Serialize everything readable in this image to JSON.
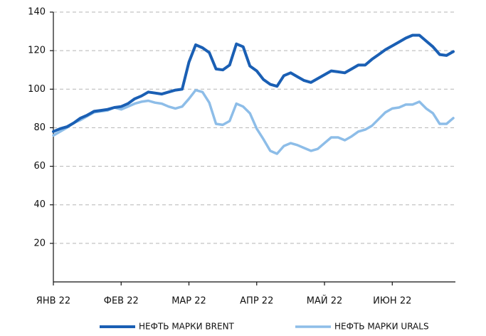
{
  "chart_data": {
    "type": "line",
    "categories": [
      "ЯНВ 22",
      null,
      null,
      null,
      null,
      null,
      null,
      null,
      null,
      null,
      "ФЕВ 22",
      null,
      null,
      null,
      null,
      null,
      null,
      null,
      null,
      null,
      "МАР 22",
      null,
      null,
      null,
      null,
      null,
      null,
      null,
      null,
      null,
      "АПР 22",
      null,
      null,
      null,
      null,
      null,
      null,
      null,
      null,
      null,
      "МАЙ 22",
      null,
      null,
      null,
      null,
      null,
      null,
      null,
      null,
      null,
      "ИЮН 22",
      null,
      null,
      null,
      null,
      null,
      null,
      null,
      null,
      null
    ],
    "series": [
      {
        "name": "НЕФТЬ МАРКИ BRENT",
        "color": "#1a5fb4",
        "values": [
          78,
          79.5,
          80.5,
          82.5,
          85,
          86.5,
          88.5,
          89,
          89.5,
          90.5,
          91,
          92.5,
          95,
          96.5,
          98.5,
          98,
          97.5,
          98.5,
          99.5,
          100,
          114,
          123,
          121.5,
          119,
          110.5,
          110,
          112.5,
          123.5,
          122,
          112,
          109.5,
          105,
          102.5,
          101.5,
          107,
          108.5,
          106.5,
          104.5,
          103.5,
          105.5,
          107.5,
          109.5,
          109,
          108.5,
          110.5,
          112.5,
          112.5,
          115.5,
          118,
          120.5,
          122.5,
          124.5,
          126.5,
          128,
          128,
          125,
          122,
          118,
          117.5,
          119.5
        ]
      },
      {
        "name": "НЕФТЬ МАРКИ URALS",
        "color": "#8dbde8",
        "values": [
          76,
          78,
          80,
          82.5,
          84,
          86,
          88,
          88.5,
          89,
          90.5,
          89.5,
          91,
          92.5,
          93.5,
          94,
          93,
          92.5,
          91,
          90,
          91,
          95,
          99.5,
          98.5,
          93,
          82,
          81.5,
          83.5,
          92.5,
          91,
          87.5,
          79.5,
          74,
          68,
          66.5,
          70.5,
          72,
          71,
          69.5,
          68,
          69,
          72,
          75,
          75,
          73.5,
          75.5,
          78,
          79,
          81,
          84.5,
          88,
          90,
          90.5,
          92,
          92,
          93.5,
          90,
          87.5,
          82,
          82,
          85
        ]
      }
    ],
    "ylim": [
      0,
      140
    ],
    "yticks": [
      20,
      40,
      60,
      80,
      100,
      120,
      140
    ],
    "grid": true,
    "legend": "bottom"
  }
}
